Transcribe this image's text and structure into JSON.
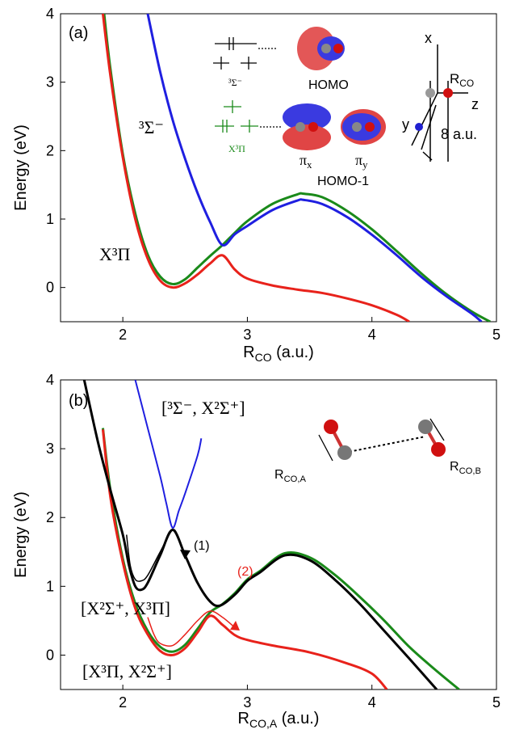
{
  "chart_data": [
    {
      "type": "line",
      "panel": "(a)",
      "xlabel": {
        "text": "R",
        "sub": "CO",
        "after": " (a.u.)"
      },
      "ylabel": "Energy (eV)",
      "xlim": [
        1.5,
        5
      ],
      "ylim": [
        -0.5,
        4
      ],
      "xticks": [
        2,
        3,
        4,
        5
      ],
      "yticks": [
        0,
        1,
        2,
        3,
        4
      ],
      "grid": false,
      "series": [
        {
          "color": "#1a8a1a",
          "linewidth": 3,
          "x": [
            1.85,
            1.9,
            2.0,
            2.1,
            2.2,
            2.3,
            2.4,
            2.5,
            2.6,
            2.7,
            2.8,
            2.9,
            3.0,
            3.2,
            3.4,
            3.45,
            3.6,
            3.8,
            4.0,
            4.2,
            4.4,
            4.6,
            4.8,
            4.95
          ],
          "values": [
            4,
            3.2,
            1.95,
            1.08,
            0.48,
            0.16,
            0.05,
            0.12,
            0.29,
            0.46,
            0.62,
            0.8,
            0.97,
            1.22,
            1.36,
            1.37,
            1.32,
            1.12,
            0.85,
            0.53,
            0.2,
            -0.1,
            -0.35,
            -0.5
          ]
        },
        {
          "color": "#1f1fe0",
          "linewidth": 3,
          "x": [
            2.2,
            2.3,
            2.4,
            2.5,
            2.6,
            2.7,
            2.8,
            2.9,
            3.0,
            3.2,
            3.4,
            3.45,
            3.6,
            3.8,
            4.0,
            4.2,
            4.4,
            4.6,
            4.8,
            4.88
          ],
          "values": [
            4,
            3.15,
            2.45,
            1.88,
            1.38,
            0.96,
            0.62,
            0.78,
            0.9,
            1.13,
            1.27,
            1.28,
            1.22,
            1.03,
            0.77,
            0.47,
            0.15,
            -0.13,
            -0.38,
            -0.5
          ]
        },
        {
          "color": "#e8221b",
          "linewidth": 3,
          "x": [
            1.84,
            1.9,
            2.0,
            2.1,
            2.2,
            2.3,
            2.4,
            2.5,
            2.6,
            2.7,
            2.8,
            2.9,
            3.0,
            3.2,
            3.4,
            3.6,
            3.8,
            4.0,
            4.2,
            4.3
          ],
          "values": [
            4,
            3.1,
            1.9,
            1.0,
            0.42,
            0.1,
            0.0,
            0.06,
            0.19,
            0.35,
            0.47,
            0.26,
            0.13,
            0.03,
            -0.03,
            -0.08,
            -0.16,
            -0.26,
            -0.4,
            -0.5
          ]
        }
      ],
      "annotations": {
        "upper_state": "³Σ⁻",
        "ground_state": "X³Π",
        "homo": "HOMO",
        "homo1": "HOMO-1",
        "level_upper": "³Σ⁻",
        "level_ground": "X³Π",
        "pi_x": {
          "text": "π",
          "sub": "x"
        },
        "pi_y": {
          "text": "π",
          "sub": "y"
        },
        "axis_x": "x",
        "axis_z": "z",
        "axis_y": "y",
        "bond": {
          "text": "R",
          "sub": "CO"
        },
        "distance": "8 a.u."
      }
    },
    {
      "type": "line",
      "panel": "(b)",
      "xlabel": {
        "text": "R",
        "sub": "CO,A",
        "after": " (a.u.)"
      },
      "ylabel": "Energy (eV)",
      "xlim": [
        1.5,
        5
      ],
      "ylim": [
        -0.5,
        4
      ],
      "xticks": [
        2,
        3,
        4,
        5
      ],
      "yticks": [
        0,
        1,
        2,
        3,
        4
      ],
      "grid": false,
      "series": [
        {
          "color": "#1a8a1a",
          "linewidth": 3,
          "x": [
            1.84,
            1.9,
            2.0,
            2.1,
            2.2,
            2.3,
            2.4,
            2.5,
            2.6,
            2.7,
            2.8,
            2.9,
            3.0,
            3.1,
            3.3,
            3.5,
            3.7,
            3.9,
            4.1,
            4.3,
            4.5,
            4.7
          ],
          "values": [
            3.3,
            2.4,
            1.4,
            0.75,
            0.35,
            0.12,
            0.05,
            0.15,
            0.38,
            0.62,
            0.74,
            0.9,
            1.1,
            1.22,
            1.48,
            1.42,
            1.17,
            0.85,
            0.5,
            0.12,
            -0.2,
            -0.5
          ]
        },
        {
          "color": "#e8221b",
          "linewidth": 3,
          "x": [
            1.84,
            1.9,
            2.0,
            2.1,
            2.2,
            2.3,
            2.4,
            2.5,
            2.6,
            2.7,
            2.8,
            2.9,
            3.0,
            3.2,
            3.5,
            3.8,
            4.0,
            4.12
          ],
          "values": [
            3.28,
            2.3,
            1.35,
            0.68,
            0.3,
            0.06,
            0.0,
            0.1,
            0.33,
            0.57,
            0.44,
            0.29,
            0.22,
            0.14,
            0.04,
            -0.12,
            -0.27,
            -0.5
          ]
        },
        {
          "color": "#e8221b",
          "linewidth": 1.5,
          "x": [
            2.2,
            2.25,
            2.3,
            2.4,
            2.5,
            2.6,
            2.7,
            2.8,
            2.9
          ],
          "values": [
            0.55,
            0.3,
            0.17,
            0.14,
            0.3,
            0.5,
            0.64,
            0.55,
            0.4
          ]
        },
        {
          "color": "#1f1fe0",
          "linewidth": 2,
          "x": [
            2.1,
            2.2,
            2.3,
            2.35,
            2.4,
            2.45,
            2.5,
            2.6,
            2.63
          ],
          "values": [
            4,
            3.3,
            2.6,
            2.2,
            1.85,
            2.1,
            2.35,
            2.9,
            3.15
          ]
        },
        {
          "color": "#000000",
          "linewidth": 3,
          "x": [
            1.69,
            1.8,
            1.9,
            2.0,
            2.05,
            2.1,
            2.15,
            2.2,
            2.3,
            2.4,
            2.5,
            2.6,
            2.7,
            2.78,
            2.9,
            3.0,
            3.1,
            3.3,
            3.5,
            3.7,
            3.9,
            4.1,
            4.3,
            4.52
          ],
          "values": [
            4,
            3.1,
            2.4,
            1.75,
            1.3,
            1.0,
            0.95,
            1.05,
            1.45,
            1.82,
            1.45,
            1.05,
            0.78,
            0.72,
            0.88,
            1.08,
            1.2,
            1.45,
            1.38,
            1.1,
            0.75,
            0.35,
            -0.05,
            -0.5
          ]
        },
        {
          "color": "#000000",
          "linewidth": 1.5,
          "x": [
            2.03,
            2.06,
            2.1,
            2.15,
            2.2,
            2.3,
            2.4,
            2.45,
            2.5
          ],
          "values": [
            1.75,
            1.3,
            1.1,
            1.08,
            1.16,
            1.5,
            1.82,
            1.68,
            1.45
          ]
        }
      ],
      "annotations": {
        "upper_pair": "[³Σ⁻, X²Σ⁺]",
        "path1": "(1)",
        "middle_pair": "[X²Σ⁺, X³Π]",
        "path2": "(2)",
        "lower_pair": "[X³Π, X²Σ⁺]",
        "bond_a": {
          "text": "R",
          "sub": "CO,A"
        },
        "bond_b": {
          "text": "R",
          "sub": "CO,B"
        }
      }
    }
  ]
}
